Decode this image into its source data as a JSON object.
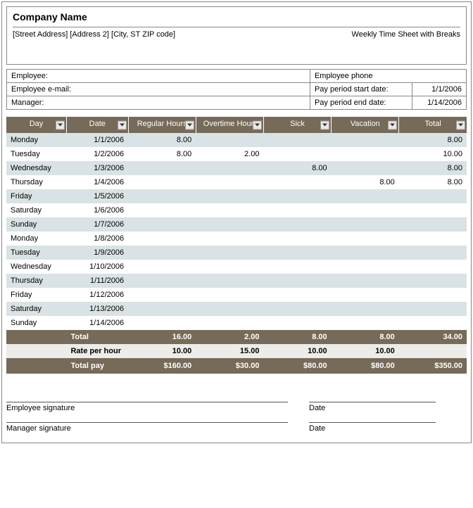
{
  "header": {
    "company_name": "Company Name",
    "address": "[Street Address] [Address 2] [City, ST ZIP code]",
    "subtitle": "Weekly Time Sheet with Breaks"
  },
  "info": {
    "employee_label": "Employee:",
    "employee_email_label": "Employee e-mail:",
    "manager_label": "Manager:",
    "phone_label": "Employee phone",
    "start_label": "Pay period start date:",
    "start_value": "1/1/2006",
    "end_label": "Pay period end date:",
    "end_value": "1/14/2006"
  },
  "columns": [
    "Day",
    "Date",
    "Regular Hours",
    "Overtime Hours",
    "Sick",
    "Vacation",
    "Total"
  ],
  "rows": [
    {
      "day": "Monday",
      "date": "1/1/2006",
      "regular": "8.00",
      "overtime": "",
      "sick": "",
      "vacation": "",
      "total": "8.00"
    },
    {
      "day": "Tuesday",
      "date": "1/2/2006",
      "regular": "8.00",
      "overtime": "2.00",
      "sick": "",
      "vacation": "",
      "total": "10.00"
    },
    {
      "day": "Wednesday",
      "date": "1/3/2006",
      "regular": "",
      "overtime": "",
      "sick": "8.00",
      "vacation": "",
      "total": "8.00"
    },
    {
      "day": "Thursday",
      "date": "1/4/2006",
      "regular": "",
      "overtime": "",
      "sick": "",
      "vacation": "8.00",
      "total": "8.00"
    },
    {
      "day": "Friday",
      "date": "1/5/2006",
      "regular": "",
      "overtime": "",
      "sick": "",
      "vacation": "",
      "total": ""
    },
    {
      "day": "Saturday",
      "date": "1/6/2006",
      "regular": "",
      "overtime": "",
      "sick": "",
      "vacation": "",
      "total": ""
    },
    {
      "day": "Sunday",
      "date": "1/7/2006",
      "regular": "",
      "overtime": "",
      "sick": "",
      "vacation": "",
      "total": ""
    },
    {
      "day": "Monday",
      "date": "1/8/2006",
      "regular": "",
      "overtime": "",
      "sick": "",
      "vacation": "",
      "total": ""
    },
    {
      "day": "Tuesday",
      "date": "1/9/2006",
      "regular": "",
      "overtime": "",
      "sick": "",
      "vacation": "",
      "total": ""
    },
    {
      "day": "Wednesday",
      "date": "1/10/2006",
      "regular": "",
      "overtime": "",
      "sick": "",
      "vacation": "",
      "total": ""
    },
    {
      "day": "Thursday",
      "date": "1/11/2006",
      "regular": "",
      "overtime": "",
      "sick": "",
      "vacation": "",
      "total": ""
    },
    {
      "day": "Friday",
      "date": "1/12/2006",
      "regular": "",
      "overtime": "",
      "sick": "",
      "vacation": "",
      "total": ""
    },
    {
      "day": "Saturday",
      "date": "1/13/2006",
      "regular": "",
      "overtime": "",
      "sick": "",
      "vacation": "",
      "total": ""
    },
    {
      "day": "Sunday",
      "date": "1/14/2006",
      "regular": "",
      "overtime": "",
      "sick": "",
      "vacation": "",
      "total": ""
    }
  ],
  "totals": {
    "label": "Total",
    "regular": "16.00",
    "overtime": "2.00",
    "sick": "8.00",
    "vacation": "8.00",
    "total": "34.00"
  },
  "rate": {
    "label": "Rate per hour",
    "regular": "10.00",
    "overtime": "15.00",
    "sick": "10.00",
    "vacation": "10.00",
    "total": ""
  },
  "pay": {
    "label": "Total pay",
    "regular": "$160.00",
    "overtime": "$30.00",
    "sick": "$80.00",
    "vacation": "$80.00",
    "total": "$350.00"
  },
  "signatures": {
    "employee": "Employee signature",
    "manager": "Manager signature",
    "date": "Date"
  },
  "style": {
    "header_bg": "#766a58",
    "header_fg": "#ffffff",
    "row_even_bg": "#d9e2e4",
    "row_odd_bg": "#ffffff",
    "rate_bg": "#ecece8",
    "border_color": "#888888",
    "font_family": "Arial, sans-serif",
    "base_font_size": 11
  }
}
